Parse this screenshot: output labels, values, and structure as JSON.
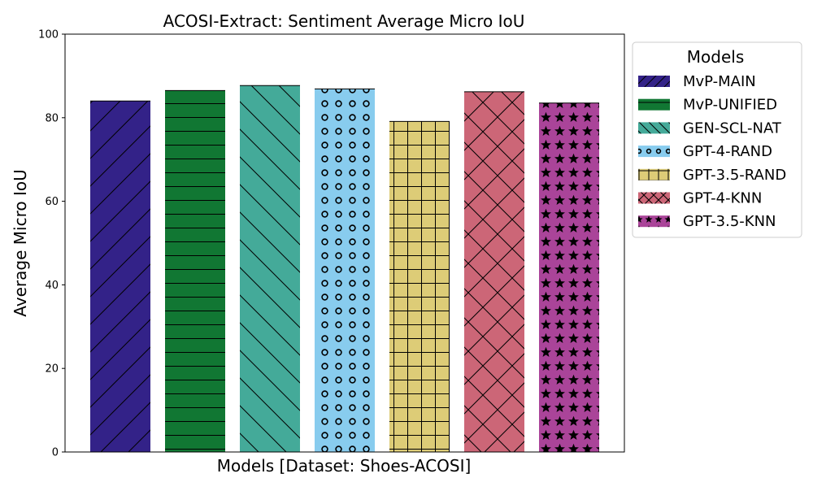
{
  "chart_data": {
    "type": "bar",
    "title": "ACOSI-Extract: Sentiment Average Micro IoU",
    "xlabel": "Models [Dataset: Shoes-ACOSI]",
    "ylabel": "Average Micro IoU",
    "ylim": [
      0,
      100
    ],
    "yticks": [
      0,
      20,
      40,
      60,
      80,
      100
    ],
    "grid": false,
    "legend": {
      "title": "Models",
      "placement": "outside-right-top"
    },
    "series": [
      {
        "name": "MvP-MAIN",
        "value": 84.0,
        "color": "#332288",
        "hatch": "diagonal-forward"
      },
      {
        "name": "MvP-UNIFIED",
        "value": 86.5,
        "color": "#117733",
        "hatch": "horizontal"
      },
      {
        "name": "GEN-SCL-NAT",
        "value": 87.7,
        "color": "#44AA99",
        "hatch": "diagonal-back"
      },
      {
        "name": "GPT-4-RAND",
        "value": 86.9,
        "color": "#88CCEE",
        "hatch": "circles"
      },
      {
        "name": "GPT-3.5-RAND",
        "value": 79.1,
        "color": "#DDCC77",
        "hatch": "grid"
      },
      {
        "name": "GPT-4-KNN",
        "value": 86.2,
        "color": "#CC6677",
        "hatch": "crosshatch"
      },
      {
        "name": "GPT-3.5-KNN",
        "value": 83.5,
        "color": "#AA4499",
        "hatch": "stars"
      }
    ]
  }
}
